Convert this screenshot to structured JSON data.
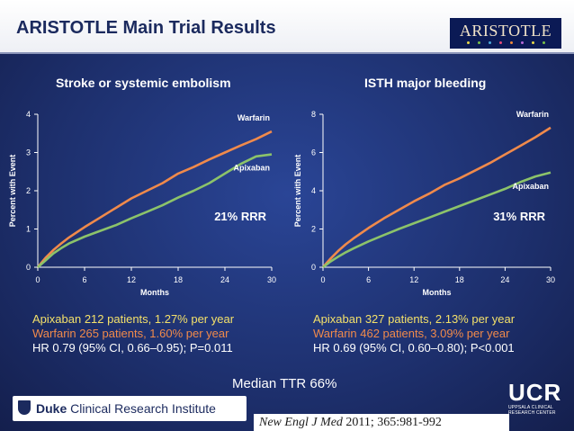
{
  "slide_title": "ARISTOTLE Main Trial Results",
  "logo": {
    "text": "ARISTOTLE",
    "dot_colors": [
      "#e7d84a",
      "#78c04a",
      "#4aa9d9",
      "#e54a7a",
      "#f08a3a",
      "#b86ad9",
      "#e7d84a",
      "#78c04a"
    ]
  },
  "colors": {
    "warfarin": "#f08a4b",
    "apixaban": "#8cc36a",
    "orange_text": "#f08a4b",
    "yellow_text": "#f3e06a",
    "white_text": "#ffffff"
  },
  "chart_data": [
    {
      "type": "line",
      "title": "Stroke or systemic embolism",
      "xlabel": "Months",
      "ylabel": "Percent with Event",
      "xlim": [
        0,
        30
      ],
      "ylim": [
        0,
        4
      ],
      "xticks": [
        0,
        6,
        12,
        18,
        24,
        30
      ],
      "yticks": [
        0,
        1,
        2,
        3,
        4
      ],
      "annotation": "21% RRR",
      "series": [
        {
          "name": "Warfarin",
          "color": "#f08a4b",
          "x": [
            0,
            1,
            2,
            3,
            4,
            6,
            8,
            10,
            12,
            14,
            16,
            18,
            20,
            22,
            24,
            26,
            28,
            30
          ],
          "y": [
            0,
            0.25,
            0.45,
            0.62,
            0.78,
            1.05,
            1.3,
            1.55,
            1.8,
            2.0,
            2.2,
            2.45,
            2.62,
            2.82,
            3.0,
            3.18,
            3.35,
            3.55
          ]
        },
        {
          "name": "Apixaban",
          "color": "#8cc36a",
          "x": [
            0,
            1,
            2,
            3,
            4,
            6,
            8,
            10,
            12,
            14,
            16,
            18,
            20,
            22,
            24,
            26,
            28,
            30
          ],
          "y": [
            0,
            0.18,
            0.36,
            0.5,
            0.62,
            0.8,
            0.95,
            1.1,
            1.28,
            1.45,
            1.62,
            1.82,
            2.0,
            2.2,
            2.45,
            2.7,
            2.9,
            2.95
          ]
        }
      ]
    },
    {
      "type": "line",
      "title": "ISTH major bleeding",
      "xlabel": "Months",
      "ylabel": "Percent with Event",
      "xlim": [
        0,
        30
      ],
      "ylim": [
        0,
        8
      ],
      "xticks": [
        0,
        6,
        12,
        18,
        24,
        30
      ],
      "yticks": [
        0,
        2,
        4,
        6,
        8
      ],
      "annotation": "31% RRR",
      "series": [
        {
          "name": "Warfarin",
          "color": "#f08a4b",
          "x": [
            0,
            1,
            2,
            3,
            4,
            6,
            8,
            10,
            12,
            14,
            16,
            18,
            20,
            22,
            24,
            26,
            28,
            30
          ],
          "y": [
            0,
            0.45,
            0.85,
            1.2,
            1.5,
            2.05,
            2.55,
            3.0,
            3.45,
            3.85,
            4.3,
            4.65,
            5.05,
            5.45,
            5.9,
            6.35,
            6.8,
            7.3
          ]
        },
        {
          "name": "Apixaban",
          "color": "#8cc36a",
          "x": [
            0,
            1,
            2,
            3,
            4,
            6,
            8,
            10,
            12,
            14,
            16,
            18,
            20,
            22,
            24,
            26,
            28,
            30
          ],
          "y": [
            0,
            0.3,
            0.55,
            0.78,
            0.98,
            1.35,
            1.68,
            2.0,
            2.3,
            2.6,
            2.9,
            3.2,
            3.5,
            3.8,
            4.1,
            4.45,
            4.75,
            4.95
          ]
        }
      ]
    }
  ],
  "results_left": [
    "Apixaban 212 patients, 1.27% per year",
    "Warfarin 265 patients, 1.60% per year",
    "HR 0.79 (95% CI, 0.66–0.95); P=0.011"
  ],
  "results_right": [
    "Apixaban 327 patients, 2.13% per year",
    "Warfarin 462 patients, 3.09% per year",
    "HR 0.69 (95% CI, 0.60–0.80); P<0.001"
  ],
  "median_ttr": "Median TTR 66%",
  "duke": {
    "bold": "Duke",
    "rest": " Clinical Research Institute"
  },
  "ucr": {
    "big": "UCR",
    "small": "UPPSALA CLINICAL RESEARCH CENTER"
  },
  "reference": {
    "journal": "New Engl J Med",
    "rest": " 2011; 365:981-992"
  }
}
